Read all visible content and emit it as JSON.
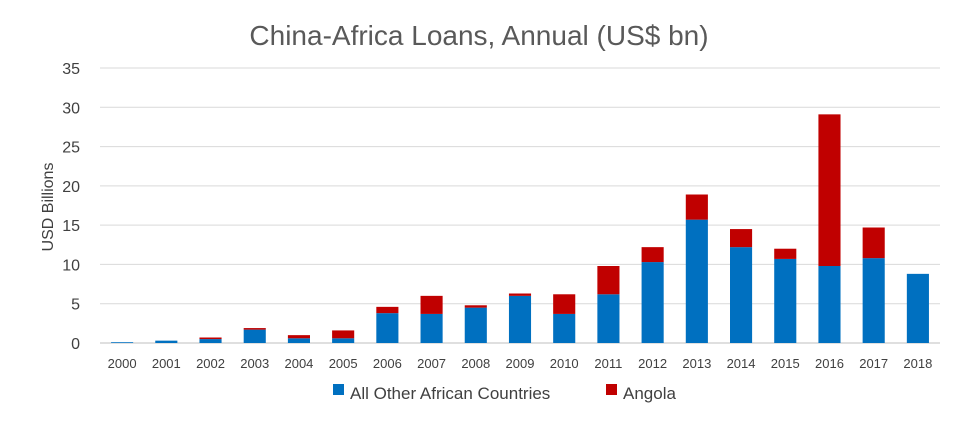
{
  "chart_data": {
    "type": "bar",
    "stacked": true,
    "title": "China-Africa Loans, Annual (US$ bn)",
    "xlabel": "",
    "ylabel": "USD Billions",
    "ylim": [
      0,
      35
    ],
    "yticks": [
      0,
      5,
      10,
      15,
      20,
      25,
      30,
      35
    ],
    "grid": true,
    "legend": "bottom",
    "categories": [
      "2000",
      "2001",
      "2002",
      "2003",
      "2004",
      "2005",
      "2006",
      "2007",
      "2008",
      "2009",
      "2010",
      "2011",
      "2012",
      "2013",
      "2014",
      "2015",
      "2016",
      "2017",
      "2018"
    ],
    "series": [
      {
        "name": "All Other African Countries",
        "color": "#0070C0",
        "values": [
          0.1,
          0.3,
          0.5,
          1.7,
          0.6,
          0.6,
          3.8,
          3.7,
          4.5,
          6.0,
          3.7,
          6.2,
          10.3,
          15.7,
          12.2,
          10.7,
          9.8,
          10.8,
          8.8
        ]
      },
      {
        "name": "Angola",
        "color": "#C00000",
        "values": [
          0.0,
          0.0,
          0.2,
          0.2,
          0.4,
          1.0,
          0.8,
          2.3,
          0.3,
          0.3,
          2.5,
          3.6,
          1.9,
          3.2,
          2.3,
          1.3,
          19.3,
          3.9,
          0.0
        ]
      }
    ]
  }
}
